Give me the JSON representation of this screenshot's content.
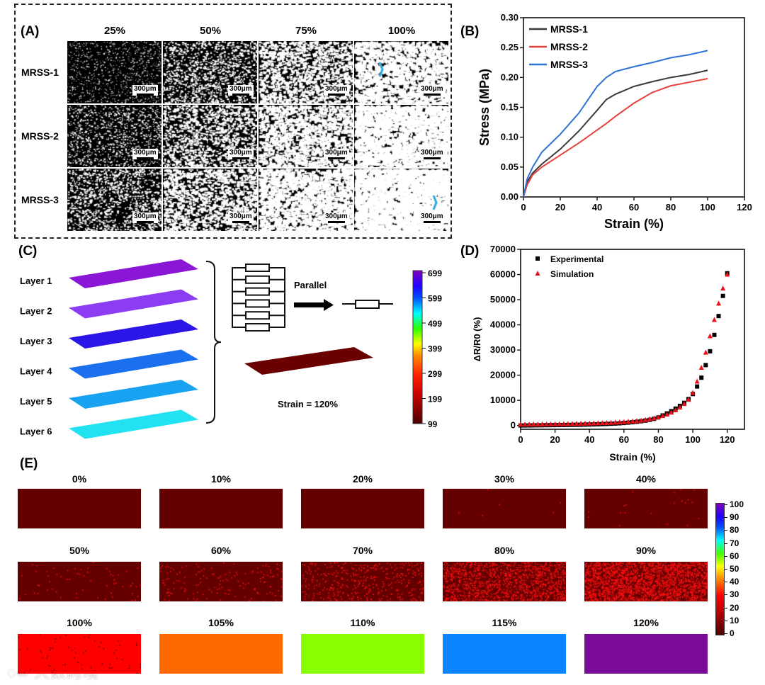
{
  "panel_labels": {
    "a": "(A)",
    "b": "(B)",
    "c": "(C)",
    "d": "(D)",
    "e": "(E)"
  },
  "panel_a": {
    "columns": [
      "25%",
      "50%",
      "75%",
      "100%"
    ],
    "rows": [
      "MRSS-1",
      "MRSS-2",
      "MRSS-3"
    ],
    "scale_bar": "300μm"
  },
  "panel_c": {
    "layers": [
      "Layer 1",
      "Layer 2",
      "Layer 3",
      "Layer 4",
      "Layer 5",
      "Layer 6"
    ],
    "layer_colors": [
      "#8a16d6",
      "#8c3cf2",
      "#2a16e6",
      "#1a70ef",
      "#19a2f2",
      "#22e2f2"
    ],
    "parallel_label": "Parallel",
    "strain_label": "Strain = 120%",
    "strip_color": "#6a0000",
    "colorbar_ticks": [
      "699",
      "599",
      "499",
      "399",
      "299",
      "199",
      "99"
    ]
  },
  "panel_e": {
    "labels": [
      "0%",
      "10%",
      "20%",
      "30%",
      "40%",
      "50%",
      "60%",
      "70%",
      "80%",
      "90%",
      "100%",
      "105%",
      "110%",
      "115%",
      "120%"
    ],
    "fill_colors": [
      "#650000",
      "#650000",
      "#650000",
      "#650000",
      "#650000",
      "#650000",
      "#650000",
      "#650000",
      "#650000",
      "#650000",
      "#ff0000",
      "#ff6a00",
      "#88ff00",
      "#0a84ff",
      "#7a0a98"
    ],
    "colorbar_ticks": [
      "100",
      "90",
      "80",
      "70",
      "60",
      "50",
      "40",
      "30",
      "20",
      "10",
      "0"
    ]
  },
  "watermark": "大数跨境",
  "chart_data": [
    {
      "type": "line",
      "title": "",
      "xlabel": "Strain (%)",
      "ylabel": "Stress (MPa)",
      "xlim": [
        0,
        120
      ],
      "ylim": [
        0,
        0.3
      ],
      "xticks": [
        "0",
        "20",
        "40",
        "60",
        "80",
        "100",
        "120"
      ],
      "yticks": [
        "0.00",
        "0.05",
        "0.10",
        "0.15",
        "0.20",
        "0.25",
        "0.30"
      ],
      "legend": "top-left",
      "x": [
        0,
        2,
        5,
        10,
        20,
        30,
        40,
        45,
        50,
        60,
        70,
        80,
        90,
        100
      ],
      "series": [
        {
          "name": "MRSS-1",
          "color": "#3a3a3a",
          "values": [
            0,
            0.025,
            0.04,
            0.055,
            0.08,
            0.11,
            0.145,
            0.163,
            0.172,
            0.185,
            0.193,
            0.2,
            0.205,
            0.212
          ]
        },
        {
          "name": "MRSS-2",
          "color": "#e8403a",
          "values": [
            0,
            0.02,
            0.037,
            0.05,
            0.07,
            0.09,
            0.112,
            0.123,
            0.135,
            0.157,
            0.175,
            0.186,
            0.192,
            0.198
          ]
        },
        {
          "name": "MRSS-3",
          "color": "#2f72d6",
          "values": [
            0,
            0.03,
            0.05,
            0.075,
            0.105,
            0.14,
            0.185,
            0.2,
            0.21,
            0.218,
            0.225,
            0.233,
            0.238,
            0.245
          ]
        }
      ]
    },
    {
      "type": "scatter",
      "title": "",
      "xlabel": "Strain (%)",
      "ylabel": "ΔR/R0 (%)",
      "xlim": [
        0,
        130
      ],
      "ylim": [
        -1500,
        70000
      ],
      "xticks": [
        "0",
        "20",
        "40",
        "60",
        "80",
        "100",
        "120"
      ],
      "yticks": [
        "0",
        "10000",
        "20000",
        "30000",
        "40000",
        "50000",
        "60000",
        "70000"
      ],
      "legend": "top-left",
      "x": [
        0,
        2.5,
        5,
        7.5,
        10,
        12.5,
        15,
        17.5,
        20,
        22.5,
        25,
        27.5,
        30,
        32.5,
        35,
        37.5,
        40,
        42.5,
        45,
        47.5,
        50,
        52.5,
        55,
        57.5,
        60,
        62.5,
        65,
        67.5,
        70,
        72.5,
        75,
        77.5,
        80,
        82.5,
        85,
        87.5,
        90,
        92.5,
        95,
        97.5,
        100,
        102.5,
        105,
        107.5,
        110,
        112.5,
        115,
        117.5,
        120
      ],
      "series": [
        {
          "name": "Experimental",
          "marker": "square",
          "color": "#000000",
          "values": [
            0,
            20,
            40,
            60,
            80,
            100,
            120,
            140,
            160,
            180,
            200,
            230,
            260,
            290,
            320,
            360,
            400,
            450,
            500,
            560,
            620,
            700,
            780,
            880,
            1000,
            1150,
            1300,
            1500,
            1700,
            1950,
            2250,
            2650,
            3200,
            4000,
            4800,
            5700,
            6700,
            7800,
            9000,
            10500,
            12500,
            15500,
            19000,
            24000,
            29500,
            36000,
            43500,
            51500,
            60500
          ]
        },
        {
          "name": "Simulation",
          "marker": "triangle",
          "color": "#e8101a",
          "values": [
            400,
            420,
            440,
            460,
            480,
            500,
            520,
            540,
            560,
            590,
            620,
            650,
            680,
            710,
            750,
            790,
            830,
            880,
            930,
            990,
            1050,
            1120,
            1200,
            1300,
            1400,
            1520,
            1650,
            1800,
            2000,
            2250,
            2550,
            2900,
            3300,
            3800,
            4400,
            5200,
            6100,
            7200,
            8600,
            10300,
            13000,
            17500,
            23000,
            29000,
            35500,
            42000,
            48500,
            54500,
            60000
          ]
        }
      ]
    }
  ]
}
